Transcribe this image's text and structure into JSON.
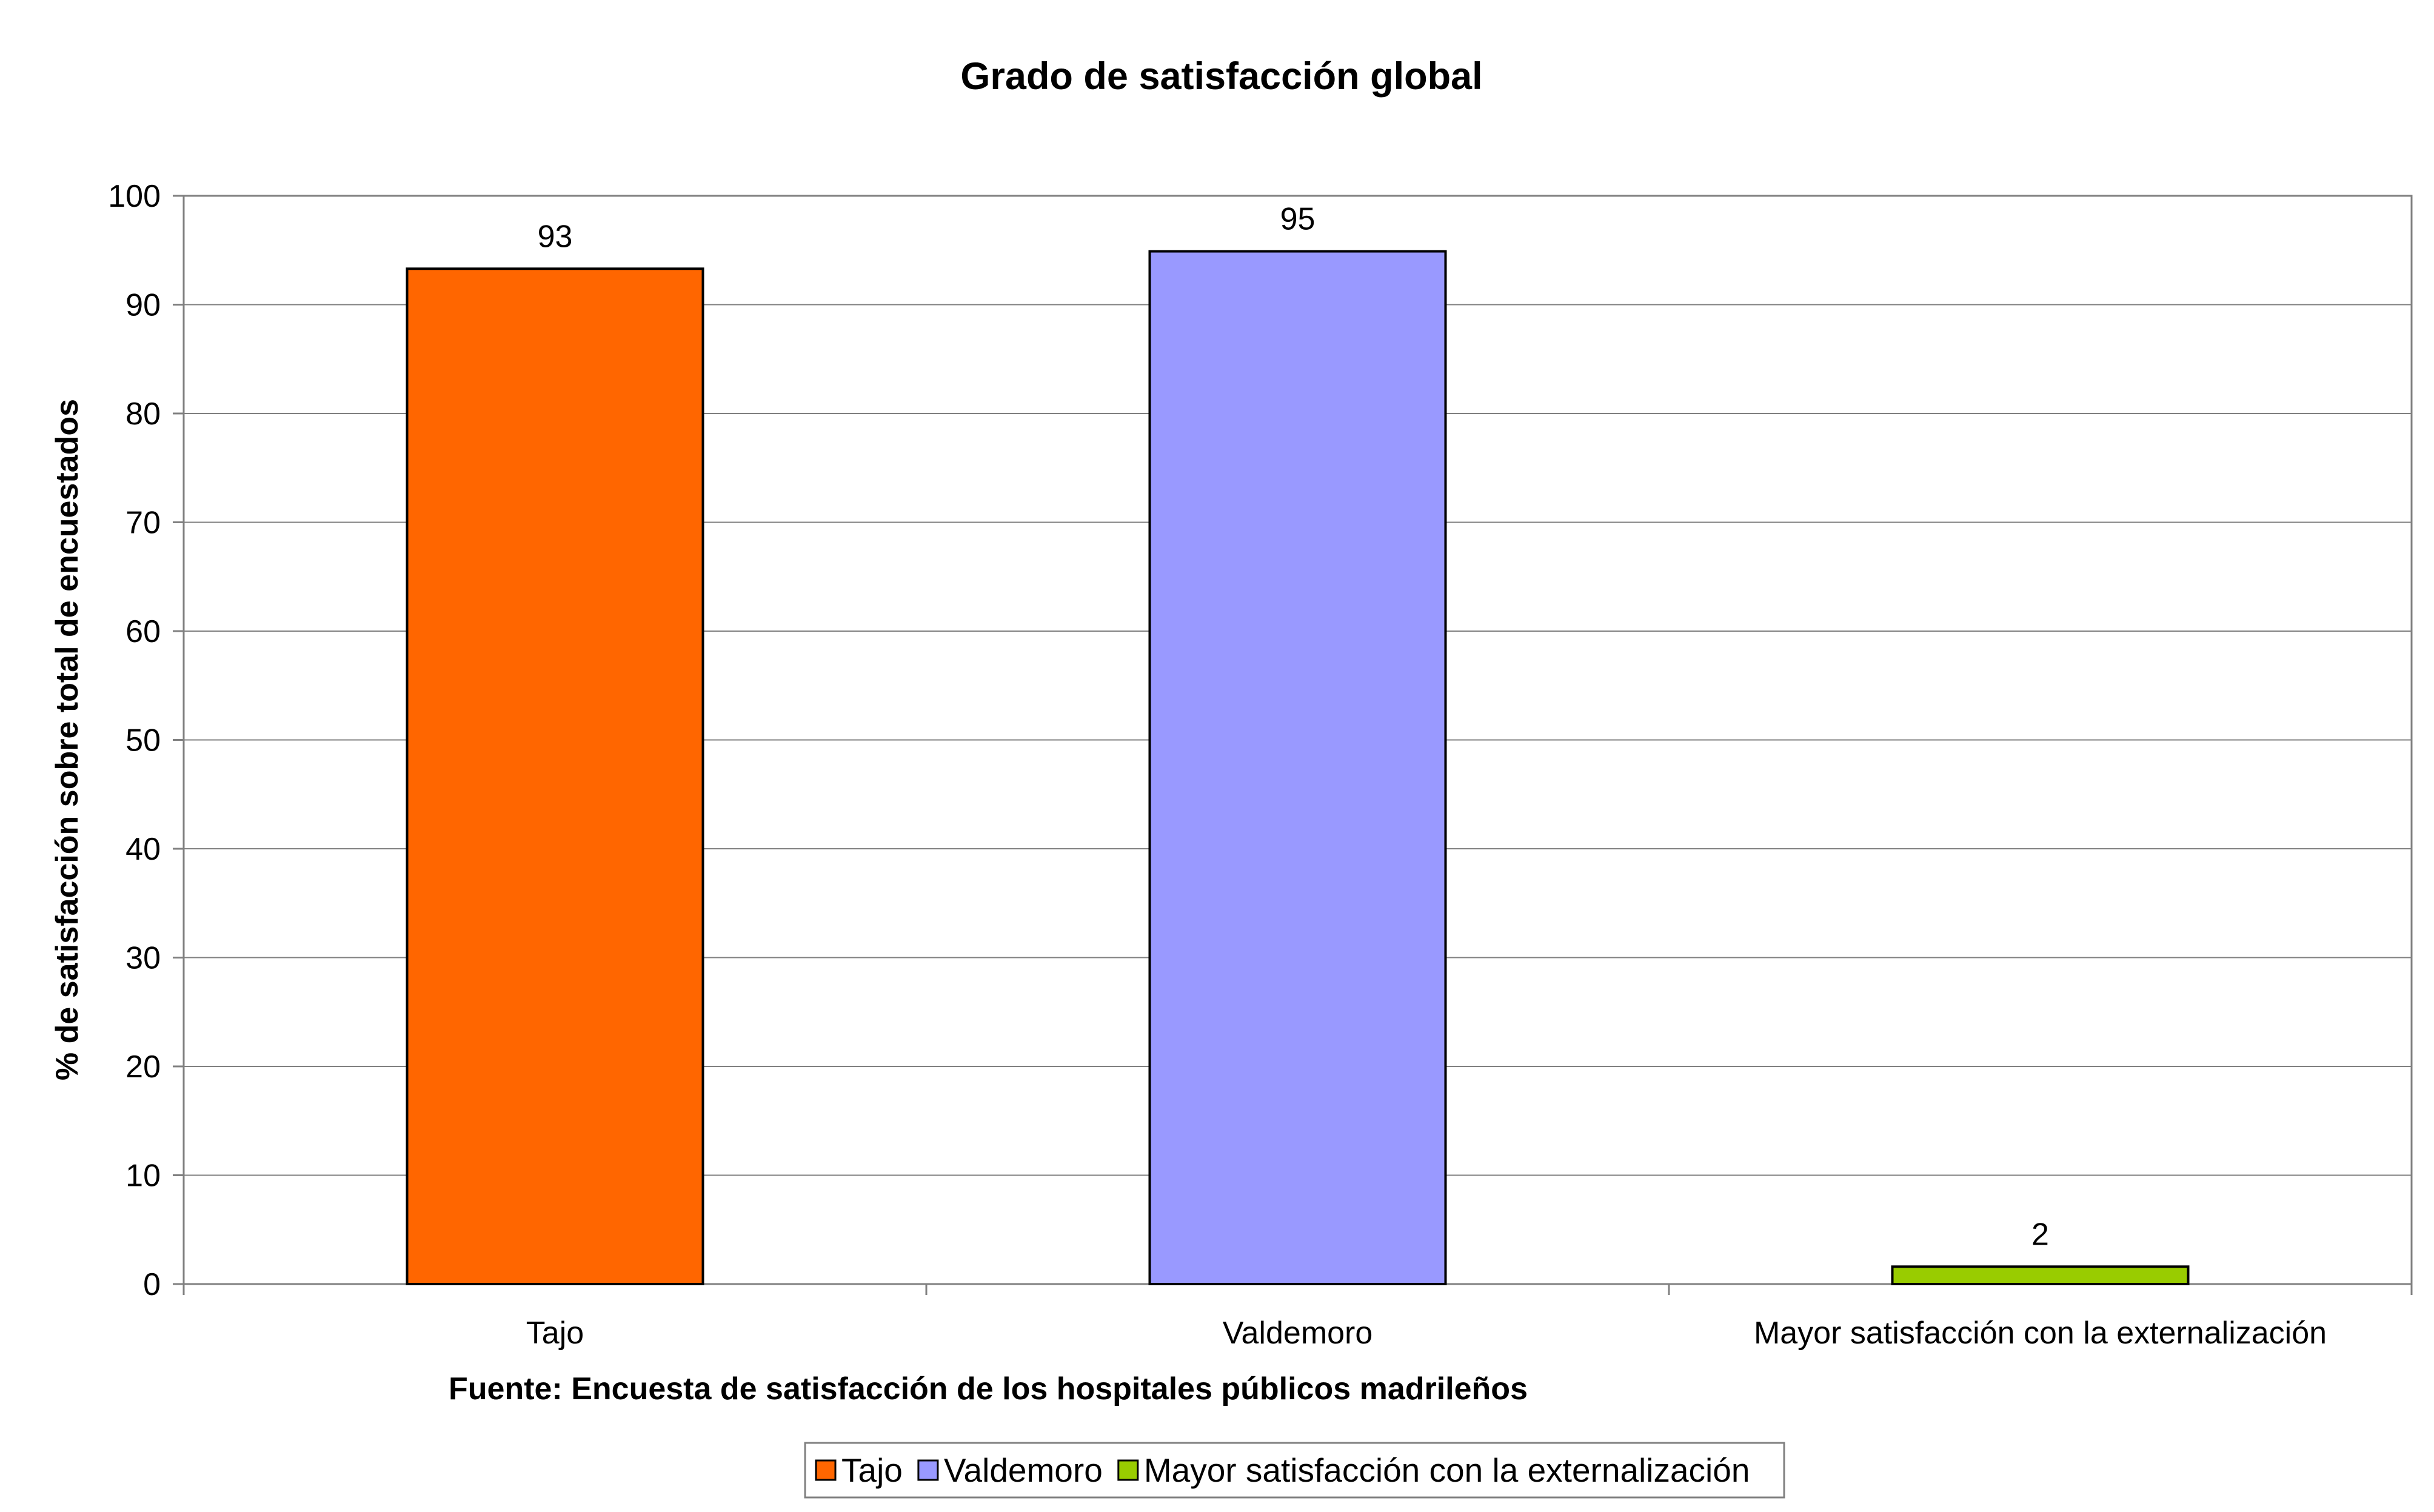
{
  "chart_data": {
    "type": "bar",
    "title": "Grado de satisfacción global",
    "xlabel": "Fuente: Encuesta de satisfacción de los hospitales públicos madrileños",
    "ylabel": "% de satisfacción sobre total de encuestados",
    "categories": [
      "Tajo",
      "Valdemoro",
      "Mayor satisfacción con la externalización"
    ],
    "values": [
      93.3,
      94.9,
      1.6
    ],
    "data_labels": [
      "93",
      "95",
      "2"
    ],
    "colors": [
      "#FF6600",
      "#9999FF",
      "#99CC00"
    ],
    "ylim": [
      0,
      100
    ],
    "yticks": [
      0,
      10,
      20,
      30,
      40,
      50,
      60,
      70,
      80,
      90,
      100
    ],
    "ytick_labels": [
      "0",
      "10",
      "20",
      "30",
      "40",
      "50",
      "60",
      "70",
      "80",
      "90",
      "100"
    ],
    "grid": true,
    "legend": {
      "placement": "bottom",
      "entries": [
        "Tajo",
        "Valdemoro",
        "Mayor satisfacción con la externalización"
      ]
    }
  }
}
